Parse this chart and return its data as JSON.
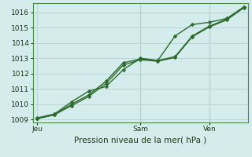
{
  "xlabel": "Pression niveau de la mer( hPa )",
  "bg_color": "#d4ecec",
  "grid_color": "#bcd4d4",
  "line_color": "#2d6b2d",
  "ylim": [
    1008.8,
    1016.6
  ],
  "yticks": [
    1009,
    1010,
    1011,
    1012,
    1013,
    1014,
    1015,
    1016
  ],
  "x_day_labels": [
    {
      "label": "Jeu",
      "x": 0
    },
    {
      "label": "Sam",
      "x": 48
    },
    {
      "label": "Ven",
      "x": 80
    }
  ],
  "xlim": [
    -2,
    98
  ],
  "vline_x": [
    48,
    80
  ],
  "line1_x": [
    0,
    8,
    16,
    24,
    32,
    40,
    48,
    56,
    64,
    72,
    80,
    88,
    96
  ],
  "line1_y": [
    1009.1,
    1009.35,
    1010.15,
    1010.85,
    1011.15,
    1012.25,
    1013.0,
    1012.85,
    1014.45,
    1015.2,
    1015.35,
    1015.6,
    1016.35
  ],
  "line2_x": [
    0,
    8,
    16,
    24,
    32,
    40,
    48,
    56,
    64,
    72,
    80,
    88,
    96
  ],
  "line2_y": [
    1009.05,
    1009.3,
    1010.0,
    1010.6,
    1011.5,
    1012.7,
    1012.95,
    1012.85,
    1013.1,
    1014.45,
    1015.1,
    1015.55,
    1016.35
  ],
  "line3_x": [
    0,
    8,
    16,
    24,
    32,
    40,
    48,
    56,
    64,
    72,
    80,
    88,
    96
  ],
  "line3_y": [
    1009.05,
    1009.3,
    1009.9,
    1010.5,
    1011.35,
    1012.55,
    1012.9,
    1012.8,
    1013.05,
    1014.4,
    1015.05,
    1015.5,
    1016.3
  ],
  "marker_size": 2.5,
  "linewidth": 1.0,
  "ytick_fontsize": 6.5,
  "xtick_fontsize": 6.5,
  "xlabel_fontsize": 7.5,
  "spine_color": "#4a8a4a"
}
